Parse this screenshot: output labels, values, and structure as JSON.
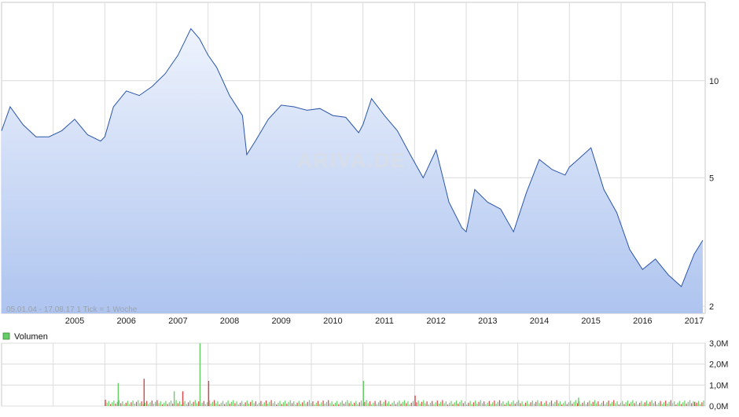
{
  "chart_data": [
    {
      "type": "area",
      "series": [
        {
          "x": [
            "2004-01",
            "2004-03",
            "2004-06",
            "2004-09",
            "2004-12",
            "2005-03",
            "2005-06",
            "2005-09",
            "2005-12",
            "2006-01",
            "2006-03",
            "2006-06",
            "2006-09",
            "2006-12",
            "2007-03",
            "2007-06",
            "2007-09",
            "2007-11",
            "2008-01",
            "2008-03",
            "2008-06",
            "2008-09",
            "2008-10",
            "2008-12",
            "2009-03",
            "2009-06",
            "2009-09",
            "2009-12",
            "2010-03",
            "2010-06",
            "2010-09",
            "2010-12",
            "2011-01",
            "2011-03",
            "2011-06",
            "2011-09",
            "2011-12",
            "2012-03",
            "2012-06",
            "2012-09",
            "2012-12",
            "2013-01",
            "2013-03",
            "2013-06",
            "2013-09",
            "2013-12",
            "2014-03",
            "2014-06",
            "2014-09",
            "2014-12",
            "2015-01",
            "2015-03",
            "2015-06",
            "2015-09",
            "2015-12",
            "2016-03",
            "2016-06",
            "2016-09",
            "2016-12",
            "2017-03",
            "2017-06",
            "2017-08"
          ],
          "values": [
            7.0,
            8.3,
            7.3,
            6.7,
            6.7,
            7.0,
            7.6,
            6.8,
            6.5,
            6.7,
            8.3,
            9.3,
            9.0,
            9.6,
            10.5,
            12.0,
            14.5,
            13.5,
            12.0,
            11.0,
            9.0,
            7.8,
            5.9,
            6.5,
            7.6,
            8.4,
            8.3,
            8.1,
            8.2,
            7.8,
            7.7,
            6.9,
            7.3,
            8.8,
            7.8,
            7.0,
            5.9,
            5.0,
            6.1,
            4.2,
            3.5,
            3.4,
            4.6,
            4.2,
            4.0,
            3.4,
            4.5,
            5.7,
            5.3,
            5.1,
            5.4,
            5.7,
            6.2,
            4.6,
            3.9,
            3.0,
            2.6,
            2.8,
            2.5,
            2.3,
            2.9,
            3.2
          ]
        }
      ],
      "ylim": [
        1.9,
        17.5
      ],
      "yscale": "log",
      "ytick_labels": [
        "10",
        "5",
        "2"
      ],
      "ytick_values": [
        10,
        5,
        2
      ],
      "xtick_labels": [
        "2005",
        "2006",
        "2007",
        "2008",
        "2009",
        "2010",
        "2011",
        "2012",
        "2013",
        "2014",
        "2015",
        "2016",
        "2017"
      ],
      "note": "05.01.04 - 17.08.17   1 Tick = 1 Woche",
      "watermark": "ARIVA.DE",
      "grid": true,
      "colors": {
        "line": "#2a55a8",
        "fill_top": "#eef3fd",
        "fill_bottom": "#aec4ef"
      }
    },
    {
      "type": "bar",
      "legend": "Volumen",
      "legend_color": "#66cc66",
      "ytick_labels": [
        "3,0M",
        "2,0M",
        "1,0M",
        "0,0M"
      ],
      "ytick_values": [
        3.0,
        2.0,
        1.0,
        0.0
      ],
      "ylim": [
        0,
        3.0
      ],
      "peaks": [
        {
          "x": "2006-01",
          "value": 0.3
        },
        {
          "x": "2006-04",
          "value": 1.1
        },
        {
          "x": "2006-10",
          "value": 1.3
        },
        {
          "x": "2007-05",
          "value": 0.7
        },
        {
          "x": "2007-07",
          "value": 0.7
        },
        {
          "x": "2007-11",
          "value": 3.0
        },
        {
          "x": "2008-01",
          "value": 1.2
        },
        {
          "x": "2011-01",
          "value": 1.2
        },
        {
          "x": "2012-01",
          "value": 0.5
        },
        {
          "x": "2015-03",
          "value": 0.4
        },
        {
          "x": "2017-06",
          "value": 0.2
        }
      ],
      "colors": {
        "up": "#66cc66",
        "down": "#dd4444"
      }
    }
  ]
}
